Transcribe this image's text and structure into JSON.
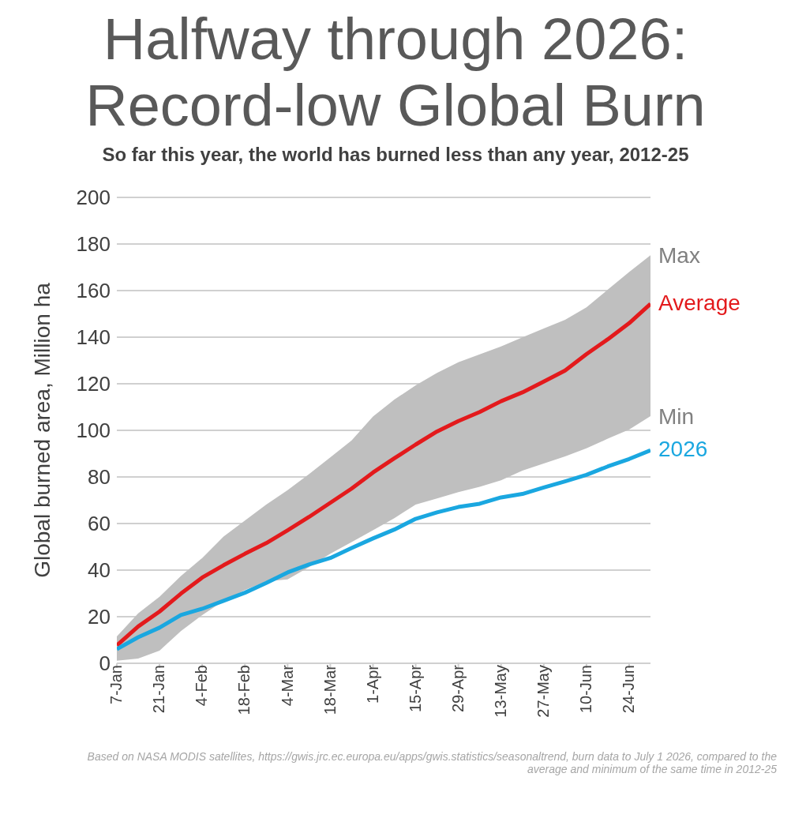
{
  "chart_data": {
    "type": "line",
    "title": "Halfway through 2026: Record-low Global Burn",
    "subtitle": "So far this year, the world has burned less than any year, 2012-25",
    "ylabel": "Global burned area, Million ha",
    "x": [
      "--01-07",
      "--01-14",
      "--01-21",
      "--01-28",
      "--02-04",
      "--02-11",
      "--02-18",
      "--02-25",
      "--03-04",
      "--03-11",
      "--03-18",
      "--03-25",
      "--04-01",
      "--04-08",
      "--04-15",
      "--04-22",
      "--04-29",
      "--05-06",
      "--05-13",
      "--05-20",
      "--05-27",
      "--06-03",
      "--06-10",
      "--06-17",
      "--06-24",
      "--07-01"
    ],
    "series": [
      {
        "name": "Average",
        "color": "#e31a1c",
        "values": [
          7.7,
          15.8,
          22.2,
          29.9,
          36.8,
          42.1,
          47,
          51.6,
          57.1,
          62.8,
          68.9,
          75,
          81.9,
          88,
          93.9,
          99.5,
          104,
          107.9,
          112.5,
          116.3,
          120.9,
          125.7,
          132.7,
          139.1,
          146,
          154.3
        ],
        "lower": [
          1.1,
          2,
          5.4,
          13.8,
          20.7,
          26.8,
          31.4,
          35.2,
          36,
          41.3,
          47,
          52,
          57.1,
          62.3,
          68.1,
          70.8,
          73.5,
          75.8,
          78.6,
          82.7,
          85.8,
          88.8,
          92.3,
          96.4,
          100.3,
          106.1
        ],
        "upper": [
          11.5,
          21.4,
          28.6,
          37.5,
          45.2,
          54.4,
          61.3,
          68.1,
          74.3,
          81.2,
          88.4,
          95.7,
          105.9,
          113.2,
          119.3,
          124.7,
          129.2,
          132.6,
          136,
          139.9,
          143.7,
          147.5,
          152.8,
          160.4,
          168,
          175.2
        ]
      },
      {
        "name": "2026",
        "color": "#1aa7e0",
        "values": [
          6.1,
          11.2,
          15.3,
          20.7,
          23.4,
          26.8,
          30.3,
          34.5,
          39,
          42.4,
          45.2,
          49.5,
          53.6,
          57.4,
          62,
          64.8,
          67.1,
          68.5,
          71.2,
          72.7,
          75.5,
          78.1,
          80.9,
          84.5,
          87.7,
          91.4
        ]
      }
    ],
    "xlim": [
      "--01-07",
      "--07-01"
    ],
    "xticks": [
      {
        "value": "--01-07",
        "label": "7-Jan"
      },
      {
        "value": "--01-21",
        "label": "21-Jan"
      },
      {
        "value": "--02-04",
        "label": "4-Feb"
      },
      {
        "value": "--02-18",
        "label": "18-Feb"
      },
      {
        "value": "--03-04",
        "label": "4-Mar"
      },
      {
        "value": "--03-18",
        "label": "18-Mar"
      },
      {
        "value": "--04-01",
        "label": "1-Apr"
      },
      {
        "value": "--04-15",
        "label": "15-Apr"
      },
      {
        "value": "--04-29",
        "label": "29-Apr"
      },
      {
        "value": "--05-13",
        "label": "13-May"
      },
      {
        "value": "--05-27",
        "label": "27-May"
      },
      {
        "value": "--06-10",
        "label": "10-Jun"
      },
      {
        "value": "--06-24",
        "label": "24-Jun"
      }
    ],
    "ylim": [
      0,
      200
    ],
    "yticks": [
      0,
      20,
      40,
      60,
      80,
      100,
      120,
      140,
      160,
      180,
      200
    ],
    "grid": "y",
    "legend": false,
    "marker": "none",
    "annotations": [
      {
        "text": "Max",
        "x": "--07-01",
        "y": 175.2
      },
      {
        "text": "Min",
        "x": "--07-01",
        "y": 106.1
      },
      "Based on NASA MODIS satellites, https://gwis.jrc.ec.europa.eu/apps/gwis.statistics/seasonaltrend, burn data to July 1 2026, compared to the average and minimum of the same time in 2012-25"
    ]
  }
}
